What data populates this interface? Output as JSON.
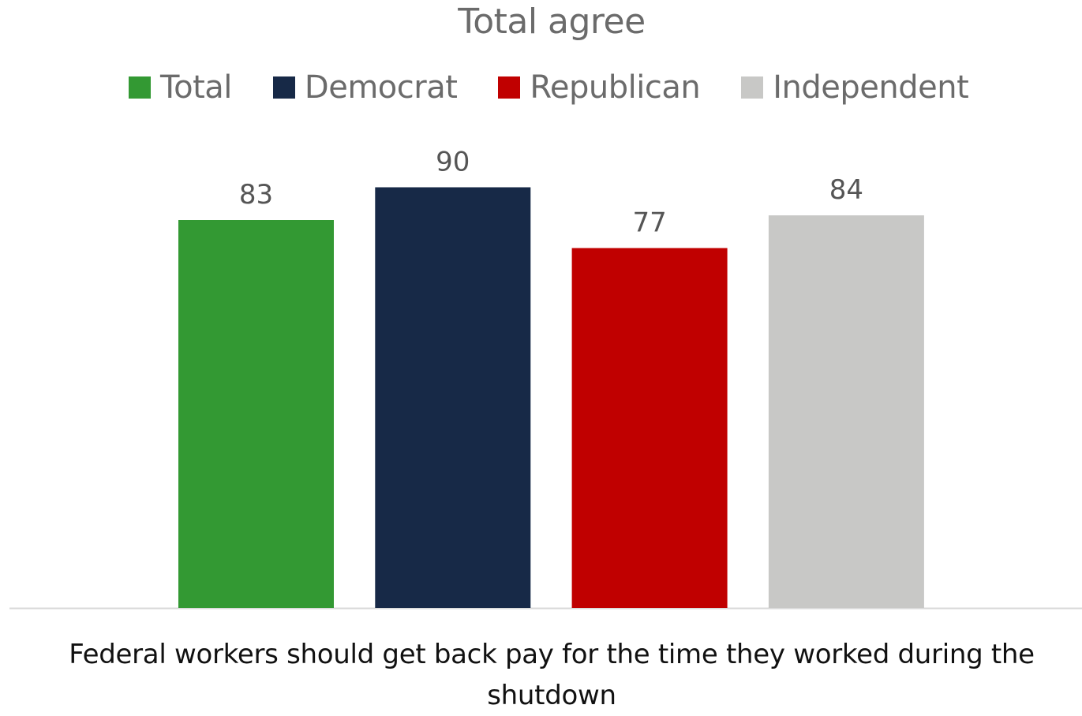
{
  "chart_data": {
    "type": "bar",
    "title": "Total agree",
    "categories": [
      "Federal workers should get back pay for the time they worked during the shutdown"
    ],
    "series": [
      {
        "name": "Total",
        "values": [
          83
        ],
        "color": "#339933"
      },
      {
        "name": "Democrat",
        "values": [
          90
        ],
        "color": "#172947"
      },
      {
        "name": "Republican",
        "values": [
          77
        ],
        "color": "#c00000"
      },
      {
        "name": "Independent",
        "values": [
          84
        ],
        "color": "#c8c8c6"
      }
    ],
    "ylim": [
      0,
      100
    ],
    "grid": false,
    "legend_position": "top",
    "axis_color": "#d9d9d9"
  }
}
